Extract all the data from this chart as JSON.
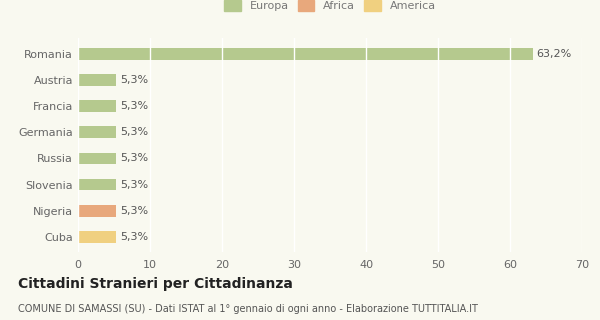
{
  "categories": [
    "Romania",
    "Austria",
    "Francia",
    "Germania",
    "Russia",
    "Slovenia",
    "Nigeria",
    "Cuba"
  ],
  "values": [
    63.2,
    5.3,
    5.3,
    5.3,
    5.3,
    5.3,
    5.3,
    5.3
  ],
  "labels": [
    "63,2%",
    "5,3%",
    "5,3%",
    "5,3%",
    "5,3%",
    "5,3%",
    "5,3%",
    "5,3%"
  ],
  "bar_colors": [
    "#b5c98e",
    "#b5c98e",
    "#b5c98e",
    "#b5c98e",
    "#b5c98e",
    "#b5c98e",
    "#e8a87c",
    "#f0d080"
  ],
  "legend_items": [
    {
      "label": "Europa",
      "color": "#b5c98e"
    },
    {
      "label": "Africa",
      "color": "#e8a87c"
    },
    {
      "label": "America",
      "color": "#f0d080"
    }
  ],
  "xlim": [
    0,
    70
  ],
  "xticks": [
    0,
    10,
    20,
    30,
    40,
    50,
    60,
    70
  ],
  "title": "Cittadini Stranieri per Cittadinanza",
  "subtitle": "COMUNE DI SAMASSI (SU) - Dati ISTAT al 1° gennaio di ogni anno - Elaborazione TUTTITALIA.IT",
  "bg_color": "#f9f9f0",
  "grid_color": "#ffffff",
  "bar_height": 0.45,
  "label_fontsize": 8,
  "tick_label_fontsize": 8,
  "title_fontsize": 10,
  "subtitle_fontsize": 7
}
